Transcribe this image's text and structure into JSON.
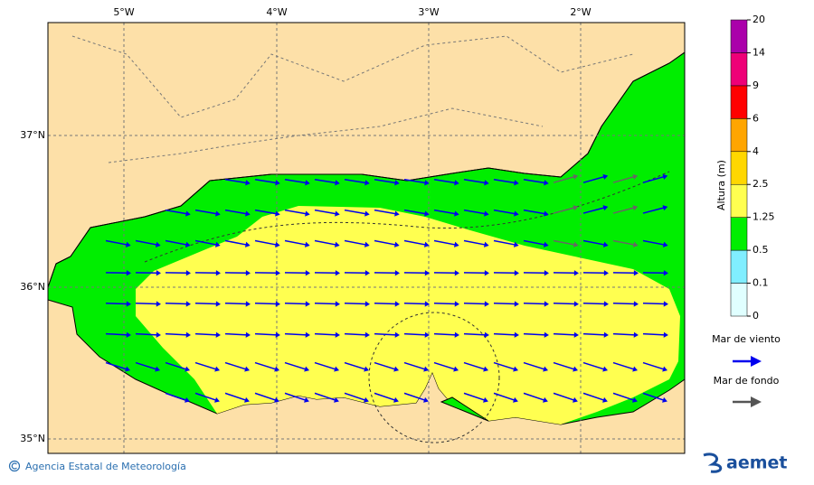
{
  "map": {
    "lon_labels": [
      "5°W",
      "4°W",
      "3°W",
      "2°W"
    ],
    "lat_labels": [
      "37°N",
      "36°N",
      "35°N"
    ]
  },
  "colorbar": {
    "title": "Altura (m)",
    "levels": [
      0,
      0.1,
      0.5,
      1.25,
      2.5,
      4,
      6,
      9,
      14,
      20
    ],
    "colors": [
      "#e0ffff",
      "#80eeff",
      "#00ee00",
      "#ffff50",
      "#ffd700",
      "#ffa500",
      "#ff0000",
      "#ee0077",
      "#aa00aa"
    ]
  },
  "legend": {
    "wind_sea": "Mar de viento",
    "swell": "Mar de fondo"
  },
  "footer": {
    "credit": "Agencia Estatal de Meteorología",
    "logo": "aemet"
  }
}
